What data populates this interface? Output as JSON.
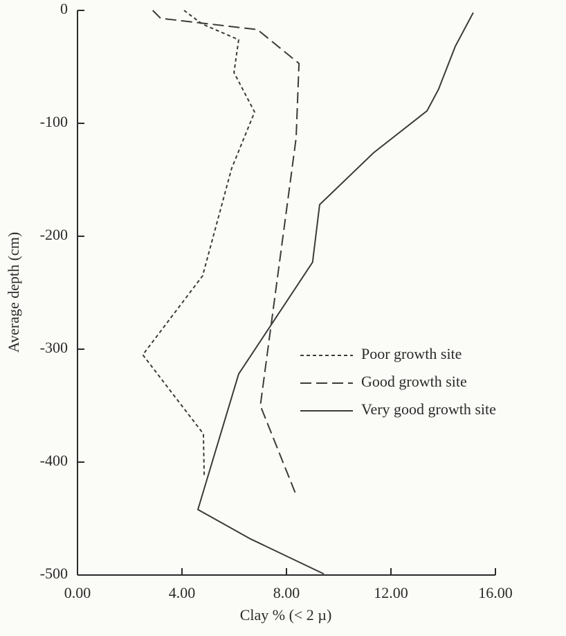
{
  "chart_data": {
    "type": "line",
    "x_label": "Clay % (< 2 µ)",
    "y_label": "Average depth (cm)",
    "xlim": [
      0,
      16
    ],
    "ylim": [
      -500,
      0
    ],
    "xticks": [
      {
        "value": 0,
        "label": "0.00"
      },
      {
        "value": 4,
        "label": "4.00"
      },
      {
        "value": 8,
        "label": "8.00"
      },
      {
        "value": 12,
        "label": "12.00"
      },
      {
        "value": 16,
        "label": "16.00"
      }
    ],
    "yticks": [
      0,
      -100,
      -200,
      -300,
      -400,
      -500
    ],
    "grid": false,
    "legend_position": "right",
    "series": [
      {
        "name": "Poor growth site",
        "color": "#3a3a3a",
        "dash": "dotted",
        "x": [
          4.08,
          4.77,
          6.17,
          5.99,
          6.78,
          5.9,
          4.79,
          2.5,
          4.82,
          4.85
        ],
        "values": [
          0,
          -12,
          -26,
          -55,
          -90,
          -140,
          -235,
          -305,
          -375,
          -412
        ]
      },
      {
        "name": "Good growth site",
        "color": "#3a3a3a",
        "dash": "dashed",
        "x": [
          2.88,
          3.18,
          6.89,
          8.48,
          8.37,
          7.0,
          8.35
        ],
        "values": [
          0,
          -7,
          -17,
          -47,
          -113,
          -350,
          -428
        ]
      },
      {
        "name": "Very good growth site",
        "color": "#3a3a3a",
        "dash": "solid",
        "x": [
          15.15,
          14.46,
          13.82,
          13.38,
          11.34,
          9.27,
          9.0,
          6.17,
          4.61,
          6.62,
          9.43
        ],
        "values": [
          -2,
          -32,
          -70,
          -89,
          -126,
          -172,
          -223,
          -322,
          -442,
          -468,
          -499
        ]
      }
    ]
  }
}
